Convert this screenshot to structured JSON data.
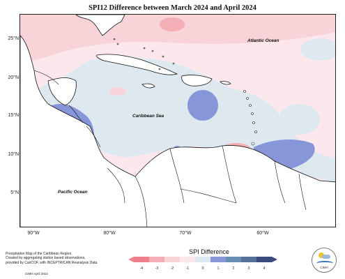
{
  "title": "SPI12 Difference between March 2024 and April 2024",
  "lat_labels": [
    "25°N",
    "20°N",
    "15°N",
    "10°N",
    "5°N"
  ],
  "lon_labels": [
    "90°W",
    "80°W",
    "70°W",
    "60°W"
  ],
  "ocean_labels": {
    "atlantic": "Atlantic Ocean",
    "caribbean": "Caribbean Sea",
    "pacific": "Pacific Ocean"
  },
  "legend": {
    "title": "SPI Difference",
    "ticks": [
      "-4",
      "-3",
      "-2",
      "-1",
      "0",
      "1",
      "2",
      "3",
      "4"
    ],
    "colors": [
      "#ef7f8a",
      "#f4aeb5",
      "#f8d3d8",
      "#fce8ec",
      "#dde9ef",
      "#8795d9",
      "#6a8fb3",
      "#56729c",
      "#3b4a7d"
    ]
  },
  "credits": [
    "Precipitation Map of the Caribbean Region.",
    "Created by aggregating station based observations,",
    "provided by CariCOF, with INCEPTRICAN Reanalysis Data."
  ],
  "copyright": "CIMH April 2024",
  "logo_text": "CIMH"
}
